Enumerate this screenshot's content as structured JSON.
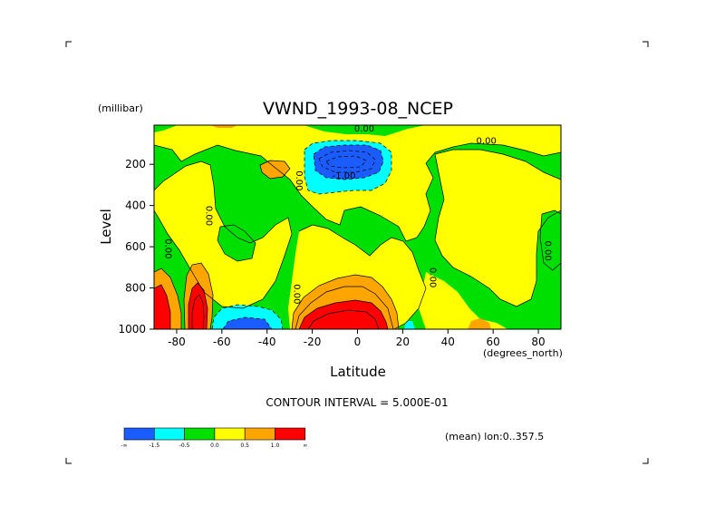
{
  "chart_data": {
    "type": "heatmap",
    "subtype": "filled-contour",
    "title": "VWND_1993-08_NCEP",
    "xlabel": "Latitude",
    "xunits": "(degrees_north)",
    "ylabel": "Level",
    "yunits": "(millibar)",
    "xlim": [
      -90,
      90
    ],
    "ylim": [
      1000,
      10
    ],
    "y_reversed": true,
    "xticks": [
      "-80",
      "-60",
      "-40",
      "-20",
      "0",
      "20",
      "40",
      "60",
      "80"
    ],
    "xtick_values": [
      -80,
      -60,
      -40,
      -20,
      0,
      20,
      40,
      60,
      80
    ],
    "yticks": [
      "200",
      "400",
      "600",
      "800",
      "1000"
    ],
    "ytick_values": [
      200,
      400,
      600,
      800,
      1000
    ],
    "contour_interval_text": "CONTOUR INTERVAL = 5.000E-01",
    "mean_text": "(mean) lon:0..357.5",
    "contour_labels": [
      {
        "text": "0.00",
        "lat": 3,
        "level": 40
      },
      {
        "text": "-1.00",
        "lat": -6,
        "level": 270
      },
      {
        "text": "0.00",
        "lat": 57,
        "level": 100
      },
      {
        "text": "0.00",
        "lat": -27,
        "level": 280,
        "vertical": true
      },
      {
        "text": "0.00",
        "lat": -67,
        "level": 450,
        "vertical": true
      },
      {
        "text": "0.00",
        "lat": -85,
        "level": 610,
        "vertical": true
      },
      {
        "text": "0.00",
        "lat": -28,
        "level": 830,
        "vertical": true
      },
      {
        "text": "0.00",
        "lat": 32,
        "level": 750,
        "vertical": true
      },
      {
        "text": "0.00",
        "lat": 83,
        "level": 620,
        "vertical": true
      }
    ],
    "colorbar": {
      "colors": [
        "#1a5cff",
        "#00ffff",
        "#00e000",
        "#ffff00",
        "#ffa500",
        "#ff0000"
      ],
      "labels": [
        "-∞",
        "-1.5",
        "-0.5",
        "0.0",
        "0.5",
        "1.0",
        "∞"
      ]
    },
    "regions": [
      {
        "desc": "southern-polar-positive-core",
        "color": "#ff0000",
        "lat": [
          -88,
          -84
        ],
        "level": [
          750,
          1000
        ]
      },
      {
        "desc": "southern-jet-positive-core",
        "color": "#ff0000",
        "lat": [
          -76,
          -69
        ],
        "level": [
          720,
          1000
        ]
      },
      {
        "desc": "equatorial-surface-positive-max",
        "color": "#ff0000",
        "lat": [
          -15,
          12
        ],
        "level": [
          870,
          1000
        ]
      },
      {
        "desc": "upper-tropical-negative-core",
        "color": "#1a5cff",
        "lat": [
          -21,
          11
        ],
        "level": [
          130,
          240
        ]
      },
      {
        "desc": "southern-midlat-surface-negative",
        "color": "#1a5cff",
        "lat": [
          -63,
          -44
        ],
        "level": [
          950,
          1000
        ]
      }
    ]
  }
}
